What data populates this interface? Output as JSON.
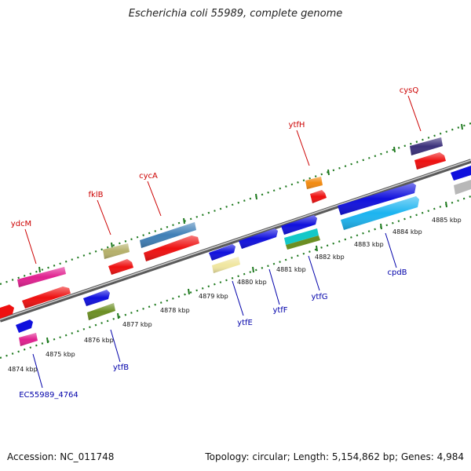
{
  "title": "Escherichia coli 55989, complete genome",
  "footer": {
    "accession": "Accession: NC_011748",
    "summary": "Topology: circular; Length: 5,154,862 bp; Genes: 4,984"
  },
  "colors": {
    "top_label": "#cc0000",
    "bottom_label": "#0000aa",
    "tick": "#1f7a1f",
    "backbone": "#7a7a7a"
  },
  "ticks": [
    "4874 kbp",
    "4875 kbp",
    "4876 kbp",
    "4877 kbp",
    "4878 kbp",
    "4879 kbp",
    "4880 kbp",
    "4881 kbp",
    "4882 kbp",
    "4883 kbp",
    "4884 kbp",
    "4885 kbp"
  ],
  "labels": {
    "top": [
      "ydcM",
      "fklB",
      "cycA",
      "ytfH",
      "cysQ"
    ],
    "bottom": [
      "EC55989_4764",
      "ytfB",
      "ytfE",
      "ytfF",
      "ytfG",
      "cpdB"
    ]
  }
}
